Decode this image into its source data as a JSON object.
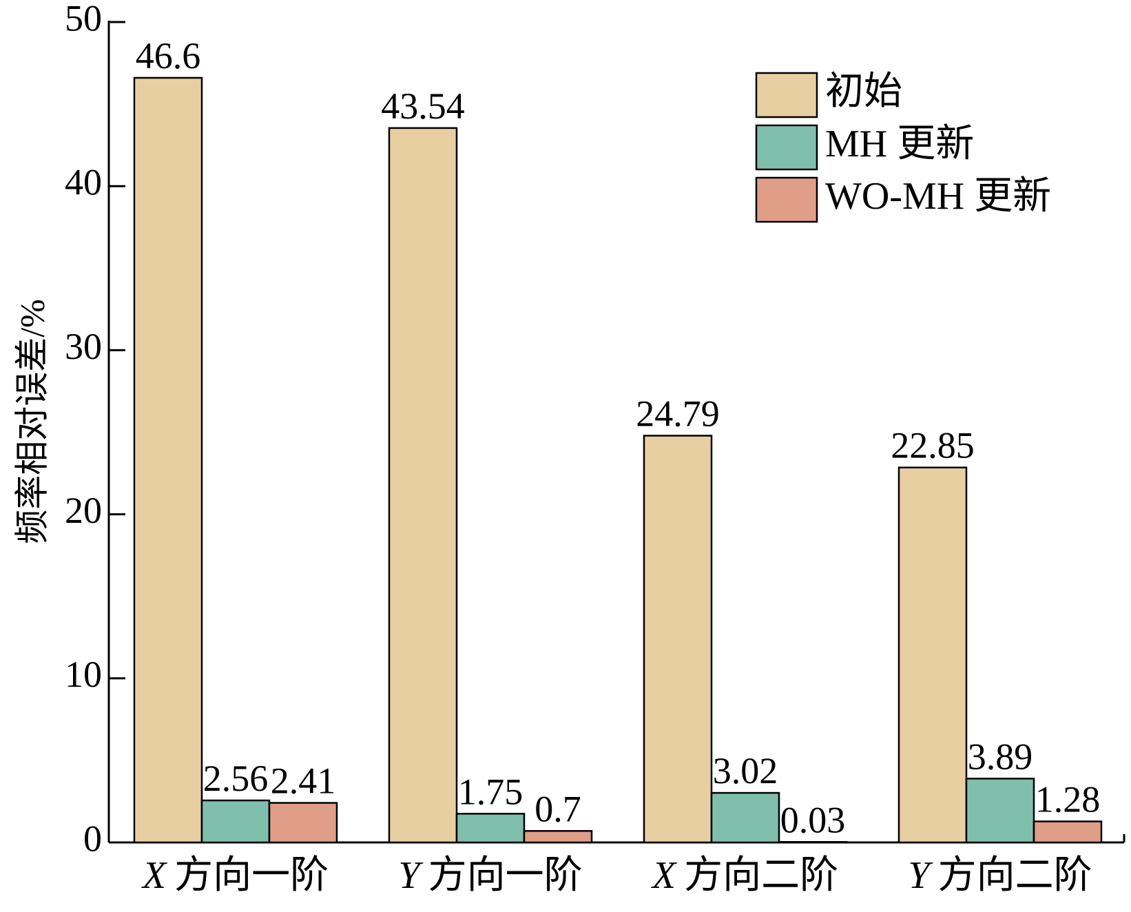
{
  "chart_data": {
    "type": "bar",
    "categories": [
      {
        "var": "X",
        "text": "方向一阶"
      },
      {
        "var": "Y",
        "text": "方向一阶"
      },
      {
        "var": "X",
        "text": "方向二阶"
      },
      {
        "var": "Y",
        "text": "方向二阶"
      }
    ],
    "series": [
      {
        "name": "初始",
        "color": "#e8cfa1",
        "values": [
          46.6,
          43.54,
          24.79,
          22.85
        ],
        "labels": [
          "46.6",
          "43.54",
          "24.79",
          "22.85"
        ]
      },
      {
        "name": "MH 更新",
        "color": "#7fbfac",
        "values": [
          2.56,
          1.75,
          3.02,
          3.89
        ],
        "labels": [
          "2.56",
          "1.75",
          "3.02",
          "3.89"
        ]
      },
      {
        "name": "WO-MH 更新",
        "color": "#e09e88",
        "values": [
          2.41,
          0.7,
          0.03,
          1.28
        ],
        "labels": [
          "2.41",
          "0.7",
          "0.03",
          "1.28"
        ]
      }
    ],
    "ylabel": "频率相对误差/%",
    "xlabel": "",
    "ylim": [
      0,
      50
    ],
    "yticks": [
      0,
      10,
      20,
      30,
      40,
      50
    ],
    "grid": false,
    "legend_position": "top-right"
  }
}
